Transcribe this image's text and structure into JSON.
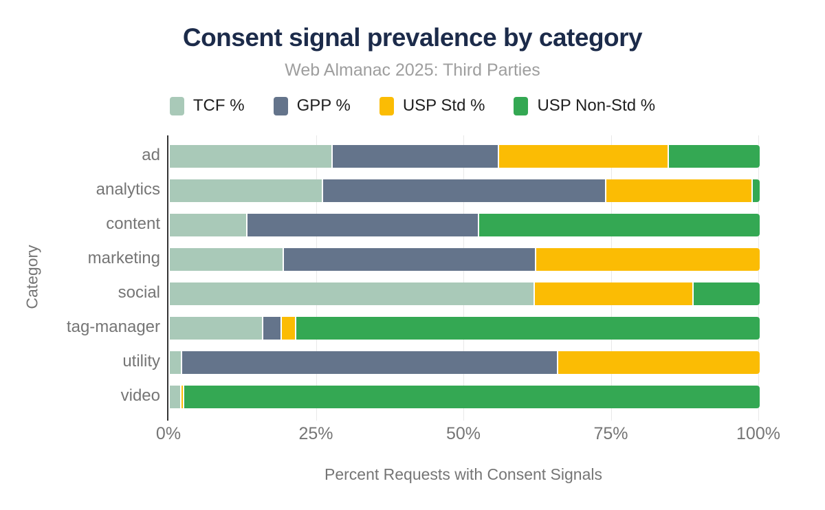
{
  "title": "Consent signal prevalence by category",
  "subtitle": "Web Almanac 2025: Third Parties",
  "colors": {
    "title_text": "#1c2b4a",
    "subtitle_text": "#9e9e9e",
    "axis_text": "#757575",
    "legend_text": "#1f1f1f",
    "gridline": "#e8e8e8",
    "axis_line": "#333333"
  },
  "legend": [
    {
      "label": "TCF %",
      "color": "#a9c9b8"
    },
    {
      "label": "GPP %",
      "color": "#64748b"
    },
    {
      "label": "USP Std %",
      "color": "#fbbc04"
    },
    {
      "label": "USP Non-Std %",
      "color": "#34a853"
    }
  ],
  "chart_data": {
    "type": "bar",
    "stacked": true,
    "orientation": "horizontal",
    "title": "Consent signal prevalence by category",
    "subtitle": "Web Almanac 2025: Third Parties",
    "xlabel": "Percent Requests with Consent Signals",
    "ylabel": "Category",
    "xlim": [
      0,
      100
    ],
    "grid": true,
    "legend_position": "top",
    "categories": [
      "ad",
      "analytics",
      "content",
      "marketing",
      "social",
      "tag-manager",
      "utility",
      "video"
    ],
    "series": [
      {
        "name": "TCF %",
        "color": "#a9c9b8",
        "values": [
          27.6,
          26.0,
          13.2,
          19.3,
          61.9,
          15.8,
          2.1,
          2.0
        ]
      },
      {
        "name": "GPP %",
        "color": "#64748b",
        "values": [
          28.2,
          48.0,
          39.2,
          42.8,
          0.0,
          3.2,
          63.7,
          0.0
        ]
      },
      {
        "name": "USP Std %",
        "color": "#fbbc04",
        "values": [
          28.8,
          24.8,
          0.0,
          37.9,
          26.9,
          2.4,
          34.2,
          0.4
        ]
      },
      {
        "name": "USP Non-Std %",
        "color": "#34a853",
        "values": [
          15.4,
          1.2,
          47.6,
          0.0,
          11.2,
          78.6,
          0.0,
          97.6
        ]
      }
    ],
    "xticks": [
      {
        "label": "0%",
        "value": 0
      },
      {
        "label": "25%",
        "value": 25
      },
      {
        "label": "50%",
        "value": 50
      },
      {
        "label": "75%",
        "value": 75
      },
      {
        "label": "100%",
        "value": 100
      }
    ]
  }
}
